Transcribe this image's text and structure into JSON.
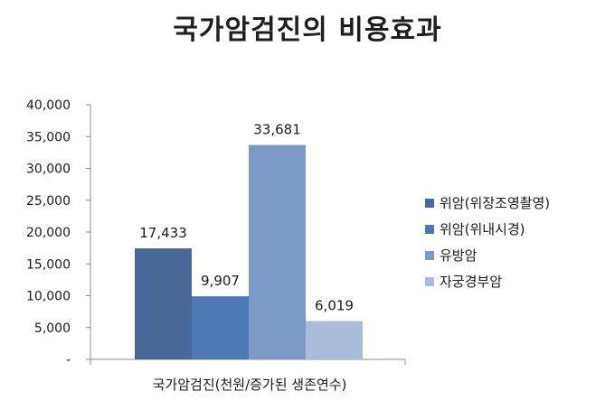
{
  "chart_data": {
    "type": "bar",
    "title": "국가암검진의 비용효과",
    "categories": [
      "국가암검진(천원/증가된 생존연수)"
    ],
    "series": [
      {
        "name": "위암(위장조영촬영)",
        "values": [
          17433
        ],
        "color": "#48689a"
      },
      {
        "name": "위암(위내시경)",
        "values": [
          9907
        ],
        "color": "#4d79b4"
      },
      {
        "name": "유방암",
        "values": [
          33681
        ],
        "color": "#7b9ac8"
      },
      {
        "name": "자궁경부암",
        "values": [
          6019
        ],
        "color": "#a9bddb"
      }
    ],
    "data_labels": [
      "17,433",
      "9,907",
      "33,681",
      "6,019"
    ],
    "ylim": [
      0,
      40000
    ],
    "yticks": [
      "-",
      "5,000",
      "10,000",
      "15,000",
      "20,000",
      "25,000",
      "30,000",
      "35,000",
      "40,000"
    ],
    "grid": false,
    "legend": "right"
  }
}
